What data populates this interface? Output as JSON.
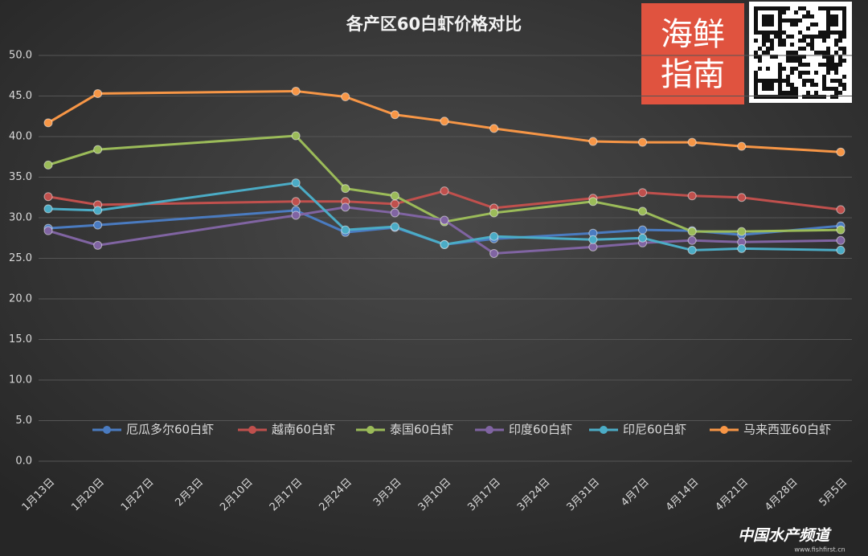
{
  "chart_data": {
    "type": "line",
    "title": "各产区60白虾价格对比",
    "categories": [
      "1月13日",
      "1月20日",
      "1月27日",
      "2月3日",
      "2月10日",
      "2月17日",
      "2月24日",
      "3月3日",
      "3月10日",
      "3月17日",
      "3月24日",
      "3月31日",
      "4月7日",
      "4月14日",
      "4月21日",
      "4月28日",
      "5月5日"
    ],
    "series": [
      {
        "name": "厄瓜多尔60白虾",
        "color": "#4a7bc0",
        "values": [
          28.7,
          29.1,
          null,
          null,
          null,
          30.9,
          28.2,
          28.8,
          26.7,
          27.4,
          null,
          28.1,
          28.5,
          28.4,
          27.9,
          null,
          29.0
        ]
      },
      {
        "name": "越南60白虾",
        "color": "#c0504d",
        "values": [
          32.6,
          31.6,
          null,
          null,
          null,
          32.0,
          32.0,
          31.7,
          33.3,
          31.2,
          null,
          32.4,
          33.1,
          32.7,
          32.5,
          null,
          31.0
        ]
      },
      {
        "name": "泰国60白虾",
        "color": "#9bbb59",
        "values": [
          36.5,
          38.4,
          null,
          null,
          null,
          40.1,
          33.6,
          32.7,
          29.5,
          30.6,
          null,
          32.0,
          30.8,
          28.3,
          28.3,
          null,
          28.5
        ]
      },
      {
        "name": "印度60白虾",
        "color": "#8064a2",
        "values": [
          28.4,
          26.6,
          null,
          null,
          null,
          30.3,
          31.3,
          30.6,
          29.7,
          25.6,
          null,
          26.4,
          26.9,
          27.2,
          27.0,
          null,
          27.2
        ]
      },
      {
        "name": "印尼60白虾",
        "color": "#4bacc6",
        "values": [
          31.1,
          30.9,
          null,
          null,
          null,
          34.3,
          28.5,
          28.9,
          26.7,
          27.7,
          null,
          27.3,
          27.5,
          26.0,
          26.2,
          null,
          26.0
        ]
      },
      {
        "name": "马来西亚60白虾",
        "color": "#f79646",
        "values": [
          41.7,
          45.3,
          null,
          null,
          null,
          45.6,
          44.9,
          42.7,
          41.9,
          41.0,
          null,
          39.4,
          39.3,
          39.3,
          38.8,
          null,
          38.1
        ]
      }
    ],
    "ylim": [
      0,
      50
    ],
    "yticks": [
      {
        "value": 0,
        "label": "0.0"
      },
      {
        "value": 5,
        "label": "5.0"
      },
      {
        "value": 10,
        "label": "10.0"
      },
      {
        "value": 15,
        "label": "15.0"
      },
      {
        "value": 20,
        "label": "20.0"
      },
      {
        "value": 25,
        "label": "25.0"
      },
      {
        "value": 30,
        "label": "30.0"
      },
      {
        "value": 35,
        "label": "35.0"
      },
      {
        "value": 40,
        "label": "40.0"
      },
      {
        "value": 45,
        "label": "45.0"
      },
      {
        "value": 50,
        "label": "50.0"
      }
    ],
    "grid": true,
    "legend": "bottom"
  },
  "logo": {
    "line1": "海鲜",
    "line2": "指南"
  },
  "watermark": {
    "name": "中国水产频道",
    "url": "www.fishfirst.cn"
  }
}
